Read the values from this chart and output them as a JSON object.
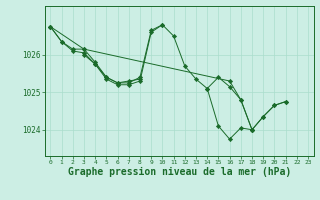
{
  "bg_color": "#cceee4",
  "grid_color": "#aaddcc",
  "line_color": "#1a6b2a",
  "marker_color": "#1a6b2a",
  "xlabel": "Graphe pression niveau de la mer (hPa)",
  "xlabel_fontsize": 7.0,
  "ytick_values": [
    1024,
    1025,
    1026
  ],
  "ylim": [
    1023.3,
    1027.3
  ],
  "xlim": [
    -0.5,
    23.5
  ],
  "series": [
    {
      "x": [
        0,
        1,
        2,
        3,
        4,
        5,
        6,
        7,
        8,
        9,
        10,
        11,
        12,
        13,
        14,
        15,
        16,
        17,
        18,
        19,
        20,
        21
      ],
      "y": [
        1026.75,
        1026.35,
        1026.1,
        1026.05,
        1025.75,
        1025.35,
        1025.2,
        1025.2,
        1025.3,
        1026.6,
        1026.8,
        1026.5,
        1025.7,
        1025.35,
        1025.1,
        1025.4,
        1025.15,
        1024.8,
        1024.0,
        1024.35,
        1024.65,
        1024.75
      ]
    },
    {
      "x": [
        0,
        1,
        2,
        3,
        4,
        5,
        6,
        7,
        8,
        9,
        10
      ],
      "y": [
        1026.75,
        1026.35,
        1026.15,
        1026.15,
        1025.8,
        1025.4,
        1025.25,
        1025.25,
        1025.4,
        1026.65,
        1026.8
      ]
    },
    {
      "x": [
        3,
        4,
        5,
        6,
        7,
        8
      ],
      "y": [
        1026.0,
        1025.75,
        1025.4,
        1025.25,
        1025.3,
        1025.35
      ]
    },
    {
      "x": [
        0,
        3,
        16,
        17,
        18
      ],
      "y": [
        1026.75,
        1026.15,
        1025.3,
        1024.8,
        1024.0
      ]
    },
    {
      "x": [
        14,
        15,
        16,
        17,
        18,
        19,
        20,
        21
      ],
      "y": [
        1025.1,
        1024.1,
        1023.75,
        1024.05,
        1024.0,
        1024.35,
        1024.65,
        1024.75
      ]
    }
  ]
}
